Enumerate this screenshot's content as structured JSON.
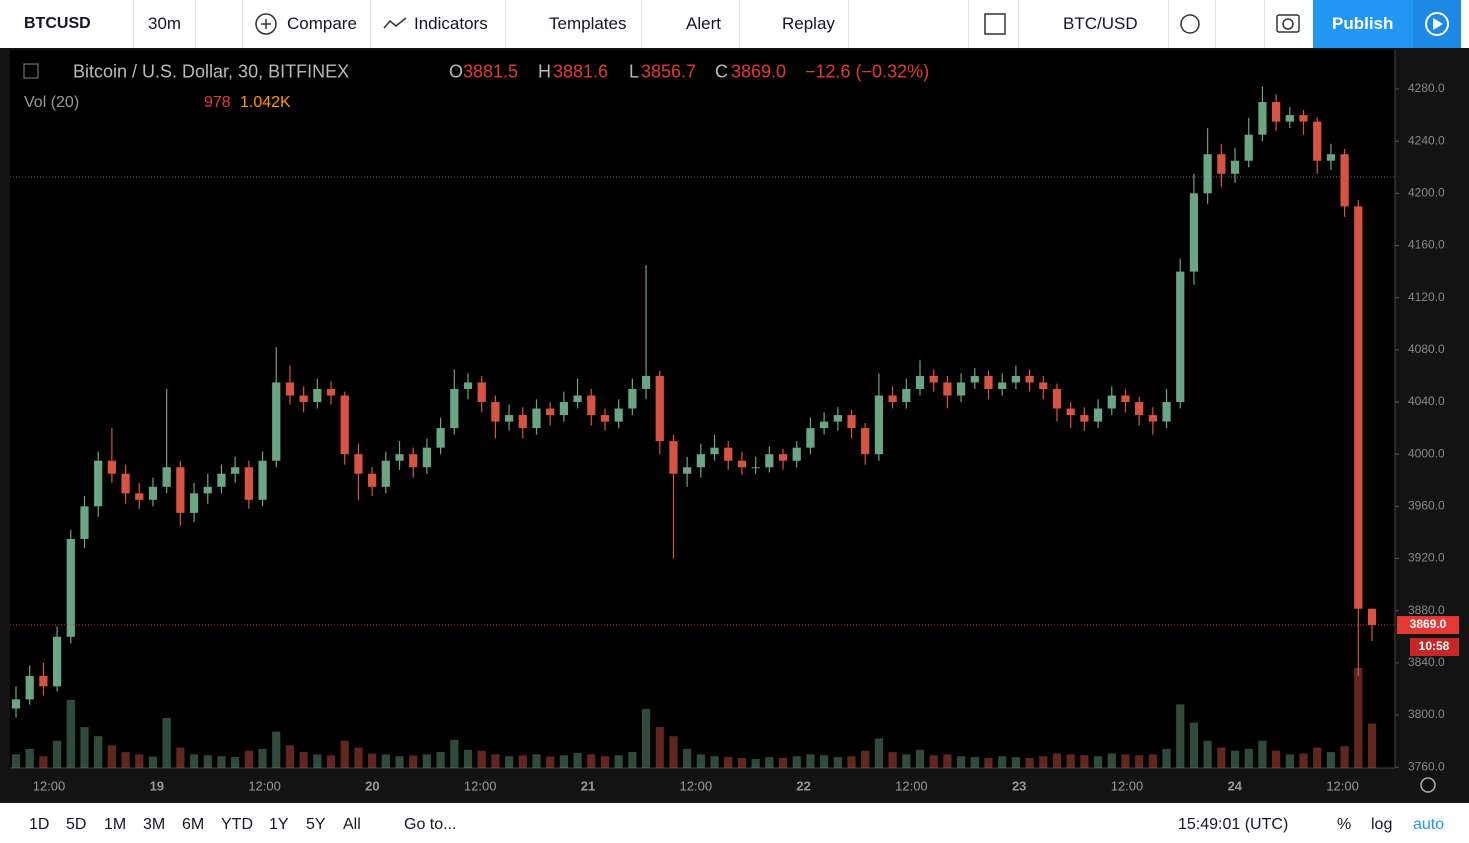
{
  "toolbar": {
    "symbol": "BTCUSD",
    "interval": "30m",
    "compare": "Compare",
    "indicators": "Indicators",
    "templates": "Templates",
    "alert": "Alert",
    "replay": "Replay",
    "pair": "BTC/USD",
    "publish": "Publish"
  },
  "legend": {
    "title": "Bitcoin / U.S. Dollar, 30, BITFINEX",
    "open_label": "O",
    "open": "3881.5",
    "high_label": "H",
    "high": "3881.6",
    "low_label": "L",
    "low": "3856.7",
    "close_label": "C",
    "close": "3869.0",
    "change": "−12.6 (−0.32%)",
    "volume_label": "Vol (20)",
    "volume": "978",
    "volume_ma": "1.042K"
  },
  "chart_data": {
    "type": "candlestick",
    "up_color": "#6ba583",
    "down_color": "#d75442",
    "ylim": [
      3759.4,
      4309.9
    ],
    "yticks": [
      {
        "value": 3760,
        "label": "3760.0"
      },
      {
        "value": 3800,
        "label": "3800.0"
      },
      {
        "value": 3840,
        "label": "3840.0"
      },
      {
        "value": 3880,
        "label": "3880.0"
      },
      {
        "value": 3920,
        "label": "3920.0"
      },
      {
        "value": 3960,
        "label": "3960.0"
      },
      {
        "value": 4000,
        "label": "4000.0"
      },
      {
        "value": 4040,
        "label": "4040.0"
      },
      {
        "value": 4080,
        "label": "4080.0"
      },
      {
        "value": 4120,
        "label": "4120.0"
      },
      {
        "value": 4160,
        "label": "4160.0"
      },
      {
        "value": 4200,
        "label": "4200.0"
      },
      {
        "value": 4240,
        "label": "4240.0"
      },
      {
        "value": 4280,
        "label": "4280.0"
      }
    ],
    "xtick_labels": [
      "12:00",
      "19",
      "12:00",
      "20",
      "12:00",
      "21",
      "12:00",
      "22",
      "12:00",
      "23",
      "12:00",
      "24",
      "12:00"
    ],
    "last_price": {
      "value": 3869,
      "label": "3869.0"
    },
    "countdown": "10:58",
    "ohlc": [
      [
        3805,
        3822,
        3798,
        3812
      ],
      [
        3812,
        3838,
        3808,
        3830
      ],
      [
        3830,
        3840,
        3815,
        3822
      ],
      [
        3822,
        3868,
        3818,
        3860
      ],
      [
        3860,
        3942,
        3855,
        3935
      ],
      [
        3935,
        3968,
        3928,
        3960
      ],
      [
        3960,
        4002,
        3952,
        3995
      ],
      [
        3995,
        4020,
        3978,
        3985
      ],
      [
        3985,
        3992,
        3962,
        3970
      ],
      [
        3970,
        3978,
        3958,
        3965
      ],
      [
        3965,
        3982,
        3960,
        3975
      ],
      [
        3975,
        4050,
        3970,
        3990
      ],
      [
        3990,
        3995,
        3945,
        3955
      ],
      [
        3955,
        3978,
        3948,
        3970
      ],
      [
        3970,
        3985,
        3962,
        3975
      ],
      [
        3975,
        3992,
        3970,
        3985
      ],
      [
        3985,
        3998,
        3978,
        3990
      ],
      [
        3990,
        3995,
        3958,
        3965
      ],
      [
        3965,
        4002,
        3960,
        3995
      ],
      [
        3995,
        4082,
        3990,
        4055
      ],
      [
        4055,
        4068,
        4038,
        4045
      ],
      [
        4045,
        4052,
        4032,
        4040
      ],
      [
        4040,
        4058,
        4035,
        4050
      ],
      [
        4050,
        4056,
        4038,
        4045
      ],
      [
        4045,
        4048,
        3992,
        4000
      ],
      [
        4000,
        4008,
        3965,
        3985
      ],
      [
        3985,
        3990,
        3968,
        3975
      ],
      [
        3975,
        4002,
        3970,
        3995
      ],
      [
        3995,
        4010,
        3988,
        4000
      ],
      [
        4000,
        4005,
        3982,
        3990
      ],
      [
        3990,
        4012,
        3985,
        4005
      ],
      [
        4005,
        4028,
        4000,
        4020
      ],
      [
        4020,
        4065,
        4015,
        4050
      ],
      [
        4050,
        4062,
        4042,
        4055
      ],
      [
        4055,
        4060,
        4032,
        4040
      ],
      [
        4040,
        4045,
        4012,
        4025
      ],
      [
        4025,
        4038,
        4018,
        4030
      ],
      [
        4030,
        4036,
        4012,
        4020
      ],
      [
        4020,
        4042,
        4015,
        4035
      ],
      [
        4035,
        4040,
        4022,
        4030
      ],
      [
        4030,
        4048,
        4025,
        4040
      ],
      [
        4040,
        4058,
        4035,
        4045
      ],
      [
        4045,
        4050,
        4022,
        4030
      ],
      [
        4030,
        4035,
        4018,
        4025
      ],
      [
        4025,
        4042,
        4020,
        4035
      ],
      [
        4035,
        4058,
        4030,
        4050
      ],
      [
        4050,
        4145,
        4042,
        4060
      ],
      [
        4060,
        4064,
        4000,
        4010
      ],
      [
        4010,
        4015,
        3920,
        3985
      ],
      [
        3985,
        3998,
        3975,
        3990
      ],
      [
        3990,
        4008,
        3982,
        4000
      ],
      [
        4000,
        4015,
        3995,
        4005
      ],
      [
        4005,
        4010,
        3988,
        3995
      ],
      [
        3995,
        4002,
        3984,
        3990
      ],
      [
        3990,
        3998,
        3985,
        3990
      ],
      [
        3990,
        4006,
        3986,
        4000
      ],
      [
        4000,
        4004,
        3988,
        3995
      ],
      [
        3995,
        4010,
        3990,
        4005
      ],
      [
        4005,
        4028,
        4000,
        4020
      ],
      [
        4020,
        4032,
        4015,
        4025
      ],
      [
        4025,
        4036,
        4018,
        4030
      ],
      [
        4030,
        4034,
        4012,
        4020
      ],
      [
        4020,
        4024,
        3992,
        4000
      ],
      [
        4000,
        4062,
        3995,
        4045
      ],
      [
        4045,
        4052,
        4035,
        4040
      ],
      [
        4040,
        4058,
        4035,
        4050
      ],
      [
        4050,
        4072,
        4045,
        4060
      ],
      [
        4060,
        4065,
        4048,
        4055
      ],
      [
        4055,
        4060,
        4035,
        4045
      ],
      [
        4045,
        4062,
        4040,
        4055
      ],
      [
        4055,
        4066,
        4050,
        4060
      ],
      [
        4060,
        4064,
        4042,
        4050
      ],
      [
        4050,
        4062,
        4045,
        4055
      ],
      [
        4055,
        4068,
        4050,
        4060
      ],
      [
        4060,
        4065,
        4048,
        4055
      ],
      [
        4055,
        4060,
        4042,
        4050
      ],
      [
        4050,
        4054,
        4025,
        4035
      ],
      [
        4035,
        4040,
        4020,
        4030
      ],
      [
        4030,
        4036,
        4018,
        4025
      ],
      [
        4025,
        4042,
        4020,
        4035
      ],
      [
        4035,
        4052,
        4030,
        4045
      ],
      [
        4045,
        4050,
        4032,
        4040
      ],
      [
        4040,
        4044,
        4022,
        4030
      ],
      [
        4030,
        4036,
        4015,
        4025
      ],
      [
        4025,
        4050,
        4020,
        4040
      ],
      [
        4040,
        4150,
        4035,
        4140
      ],
      [
        4140,
        4215,
        4130,
        4200
      ],
      [
        4200,
        4250,
        4192,
        4230
      ],
      [
        4230,
        4238,
        4205,
        4215
      ],
      [
        4215,
        4235,
        4208,
        4225
      ],
      [
        4225,
        4258,
        4220,
        4245
      ],
      [
        4245,
        4282,
        4240,
        4270
      ],
      [
        4270,
        4276,
        4248,
        4255
      ],
      [
        4255,
        4266,
        4250,
        4260
      ],
      [
        4260,
        4264,
        4245,
        4255
      ],
      [
        4255,
        4258,
        4215,
        4225
      ],
      [
        4225,
        4238,
        4218,
        4230
      ],
      [
        4230,
        4234,
        4182,
        4190
      ],
      [
        4190,
        4195,
        3830,
        3881.5
      ],
      [
        3881.5,
        3881.6,
        3856.7,
        3869.0
      ]
    ],
    "volume": [
      300,
      420,
      260,
      600,
      1500,
      900,
      700,
      500,
      350,
      300,
      250,
      1100,
      450,
      300,
      280,
      260,
      240,
      380,
      420,
      800,
      500,
      350,
      300,
      280,
      600,
      450,
      320,
      300,
      260,
      280,
      300,
      350,
      620,
      400,
      380,
      300,
      260,
      280,
      300,
      250,
      280,
      330,
      300,
      260,
      280,
      350,
      1300,
      900,
      700,
      420,
      300,
      260,
      240,
      220,
      200,
      240,
      220,
      260,
      300,
      280,
      240,
      260,
      380,
      650,
      350,
      300,
      400,
      280,
      300,
      260,
      240,
      220,
      260,
      240,
      220,
      260,
      320,
      300,
      280,
      260,
      320,
      300,
      280,
      300,
      420,
      1400,
      1000,
      600,
      450,
      380,
      420,
      600,
      380,
      300,
      320,
      450,
      350,
      480,
      2200,
      978
    ]
  },
  "footer": {
    "ranges": [
      "1D",
      "5D",
      "1M",
      "3M",
      "6M",
      "YTD",
      "1Y",
      "5Y",
      "All"
    ],
    "goto": "Go to...",
    "time": "15:49:01 (UTC)",
    "percent": "%",
    "log": "log",
    "auto": "auto"
  }
}
